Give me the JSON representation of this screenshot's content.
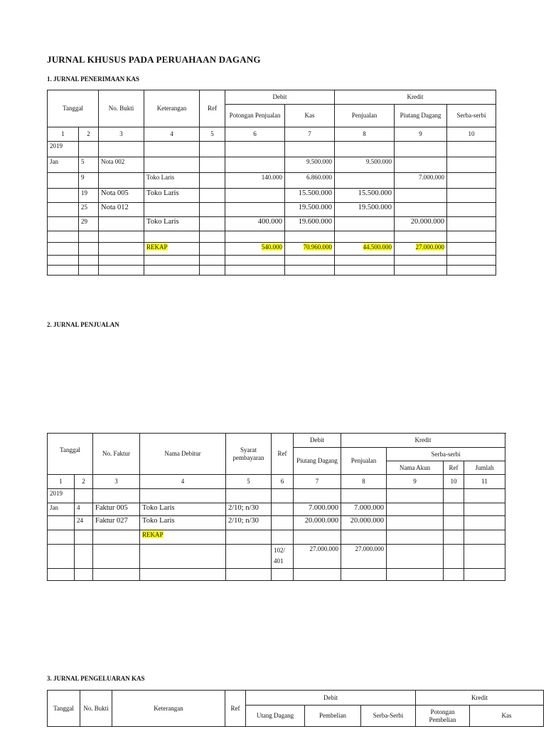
{
  "title": "JURNAL KHUSUS PADA PERUAHAAN DAGANG",
  "highlight_color": "#ffff00",
  "t1": {
    "heading": "1. JURNAL PENERIMAAN KAS",
    "h": {
      "tanggal": "Tanggal",
      "bukti": "No. Bukti",
      "ket": "Keterangan",
      "ref": "Ref",
      "debit": "Debit",
      "kredit": "Kredit",
      "pot": "Potongan Penjualan",
      "kas": "Kas",
      "penj": "Penjualan",
      "piut": "Piutang Dagang",
      "serba": "Serba-serbi"
    },
    "nums": [
      "1",
      "2",
      "3",
      "4",
      "5",
      "6",
      "7",
      "8",
      "9",
      "10"
    ],
    "rows": [
      {
        "cells": [
          "2019",
          "",
          "",
          "",
          "",
          "",
          "",
          "",
          "",
          ""
        ]
      },
      {
        "cells": [
          "Jan",
          "5",
          "Nota 002",
          "",
          "",
          "",
          "9.500.000",
          "9.500.000",
          "",
          ""
        ]
      },
      {
        "cells": [
          "",
          "9",
          "",
          "Toko Laris",
          "",
          "140.000",
          "6.860.000",
          "",
          "7.000.000",
          ""
        ]
      },
      {
        "cells": [
          "",
          "19",
          "Nota 005",
          "Toko Laris",
          "",
          "",
          "15.500.000",
          "15.500.000",
          "",
          ""
        ]
      },
      {
        "cells": [
          "",
          "25",
          "Nota 012",
          "",
          "",
          "",
          "19.500.000",
          "19.500.000",
          "",
          ""
        ]
      },
      {
        "cells": [
          "",
          "29",
          "",
          "Toko Laris",
          "",
          "400.000",
          "19.600.000",
          "",
          "20.000.000",
          ""
        ]
      },
      {
        "cells": [
          "",
          "",
          "",
          "",
          "",
          "",
          "",
          "",
          "",
          ""
        ]
      },
      {
        "cells": [
          "",
          "",
          "",
          "REKAP",
          "",
          "540.000",
          "70.960.000",
          "44.500.000",
          "27.000.000",
          ""
        ],
        "highlight": true
      },
      {
        "cells": [
          "",
          "",
          "",
          "",
          "",
          "",
          "",
          "",
          "",
          ""
        ]
      },
      {
        "cells": [
          "",
          "",
          "",
          "",
          "",
          "",
          "",
          "",
          "",
          ""
        ]
      }
    ]
  },
  "t2": {
    "heading": "2. JURNAL PENJUALAN",
    "h": {
      "tanggal": "Tanggal",
      "faktur": "No. Faktur",
      "debitur": "Nama Debitur",
      "syarat": "Syarat pembayaran",
      "ref": "Ref",
      "debit": "Debit",
      "kredit": "Kredit",
      "piut": "Piutang Dagang",
      "penj": "Penjualan",
      "serba": "Serba-serbi",
      "akun": "Nama Akun",
      "ref2": "Ref",
      "jumlah": "Jumlah"
    },
    "nums": [
      "1",
      "2",
      "3",
      "4",
      "5",
      "6",
      "7",
      "8",
      "9",
      "10",
      "11"
    ],
    "rows": [
      {
        "cells": [
          "2019",
          "",
          "",
          "",
          "",
          "",
          "",
          "",
          "",
          "",
          ""
        ]
      },
      {
        "cells": [
          "Jan",
          "4",
          "Faktur 005",
          "Toko Laris",
          "2/10; n/30",
          "",
          "7.000.000",
          "7.000.000",
          "",
          "",
          ""
        ]
      },
      {
        "cells": [
          "",
          "24",
          "Faktur 027",
          "Toko Laris",
          "2/10; n/30",
          "",
          "20.000.000",
          "20.000.000",
          "",
          "",
          ""
        ]
      },
      {
        "cells": [
          "",
          "",
          "",
          "REKAP",
          "",
          "",
          "",
          "",
          "",
          "",
          ""
        ],
        "highlight": true
      },
      {
        "cells": [
          "",
          "",
          "",
          "",
          "",
          "102/ 401",
          "27.000.000",
          "27.000.000",
          "",
          "",
          ""
        ]
      },
      {
        "cells": [
          "",
          "",
          "",
          "",
          "",
          "",
          "",
          "",
          "",
          "",
          ""
        ]
      }
    ]
  },
  "t3": {
    "heading": "3. JURNAL PENGELUARAN KAS",
    "h": {
      "tanggal": "Tanggal",
      "bukti": "No. Bukti",
      "ket": "Keterangan",
      "ref": "Ref",
      "debit": "Debit",
      "kredit": "Kredit",
      "utang": "Utang Dagang",
      "pemb": "Pembelian",
      "serba": "Serba-Serbi",
      "pot": "Potongan Pembelian",
      "kas": "Kas"
    }
  }
}
